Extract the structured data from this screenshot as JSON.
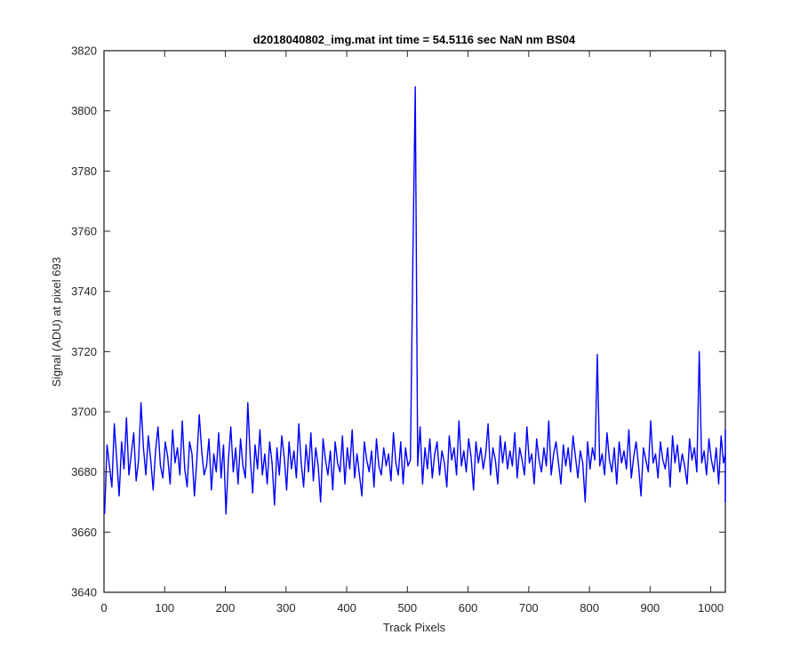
{
  "chart_data": {
    "type": "line",
    "title": "d2018040802_img.mat int time = 54.5116 sec  NaN nm BS04",
    "xlabel": "Track Pixels",
    "ylabel": "Signal (ADU) at pixel 693",
    "xlim": [
      0,
      1024
    ],
    "ylim": [
      3640,
      3820
    ],
    "xticks": [
      0,
      100,
      200,
      300,
      400,
      500,
      600,
      700,
      800,
      900,
      1000
    ],
    "yticks": [
      3640,
      3660,
      3680,
      3700,
      3720,
      3740,
      3760,
      3780,
      3800,
      3820
    ],
    "grid": false,
    "series_color": "#0000ff",
    "series": [
      {
        "values_note_style": "noise",
        "x_start": 1,
        "x_step": 4,
        "values": [
          3666,
          3689,
          3682,
          3675,
          3696,
          3684,
          3672,
          3690,
          3681,
          3698,
          3679,
          3686,
          3693,
          3677,
          3684,
          3703,
          3688,
          3679,
          3692,
          3684,
          3674,
          3687,
          3695,
          3682,
          3678,
          3690,
          3685,
          3676,
          3694,
          3683,
          3688,
          3679,
          3697,
          3681,
          3675,
          3690,
          3686,
          3672,
          3684,
          3699,
          3687,
          3679,
          3682,
          3691,
          3674,
          3686,
          3680,
          3693,
          3678,
          3689,
          3666,
          3684,
          3695,
          3680,
          3688,
          3676,
          3691,
          3682,
          3678,
          3703,
          3685,
          3673,
          3689,
          3681,
          3694,
          3679,
          3686,
          3676,
          3690,
          3683,
          3669,
          3688,
          3679,
          3692,
          3685,
          3674,
          3690,
          3681,
          3687,
          3678,
          3696,
          3683,
          3675,
          3689,
          3680,
          3693,
          3677,
          3688,
          3682,
          3670,
          3691,
          3684,
          3679,
          3687,
          3674,
          3690,
          3683,
          3680,
          3692,
          3676,
          3688,
          3681,
          3694,
          3678,
          3686,
          3679,
          3672,
          3690,
          3684,
          3680,
          3687,
          3675,
          3691,
          3682,
          3679,
          3688,
          3682,
          3686,
          3677,
          3693,
          3683,
          3679,
          3690,
          3676,
          3688,
          3682,
          3684,
          3750,
          3808,
          3682,
          3695,
          3676,
          3688,
          3681,
          3691,
          3678,
          3686,
          3690,
          3679,
          3687,
          3683,
          3675,
          3692,
          3684,
          3688,
          3679,
          3697,
          3682,
          3687,
          3680,
          3691,
          3685,
          3674,
          3690,
          3683,
          3688,
          3681,
          3686,
          3696,
          3679,
          3688,
          3684,
          3676,
          3692,
          3683,
          3690,
          3681,
          3687,
          3682,
          3693,
          3678,
          3688,
          3684,
          3679,
          3695,
          3683,
          3686,
          3676,
          3691,
          3684,
          3680,
          3688,
          3682,
          3697,
          3679,
          3686,
          3690,
          3683,
          3676,
          3689,
          3682,
          3688,
          3680,
          3692,
          3685,
          3678,
          3687,
          3683,
          3670,
          3690,
          3681,
          3688,
          3684,
          3719,
          3682,
          3686,
          3679,
          3693,
          3684,
          3680,
          3688,
          3676,
          3690,
          3683,
          3687,
          3681,
          3694,
          3678,
          3685,
          3690,
          3682,
          3672,
          3688,
          3684,
          3680,
          3697,
          3683,
          3686,
          3678,
          3690,
          3684,
          3681,
          3688,
          3675,
          3692,
          3683,
          3689,
          3680,
          3686,
          3682,
          3676,
          3691,
          3684,
          3688,
          3680,
          3720,
          3683,
          3687,
          3679,
          3691,
          3684,
          3680,
          3688,
          3676,
          3692,
          3683,
          3686,
          3680,
          3689,
          3682,
          3694,
          3678,
          3687,
          3684,
          3680,
          3690,
          3682,
          3676,
          3688,
          3683,
          3691,
          3679,
          3686,
          3684,
          3670,
          3689,
          3682,
          3687,
          3680,
          3693,
          3683,
          3679,
          3688,
          3676
        ]
      }
    ]
  }
}
